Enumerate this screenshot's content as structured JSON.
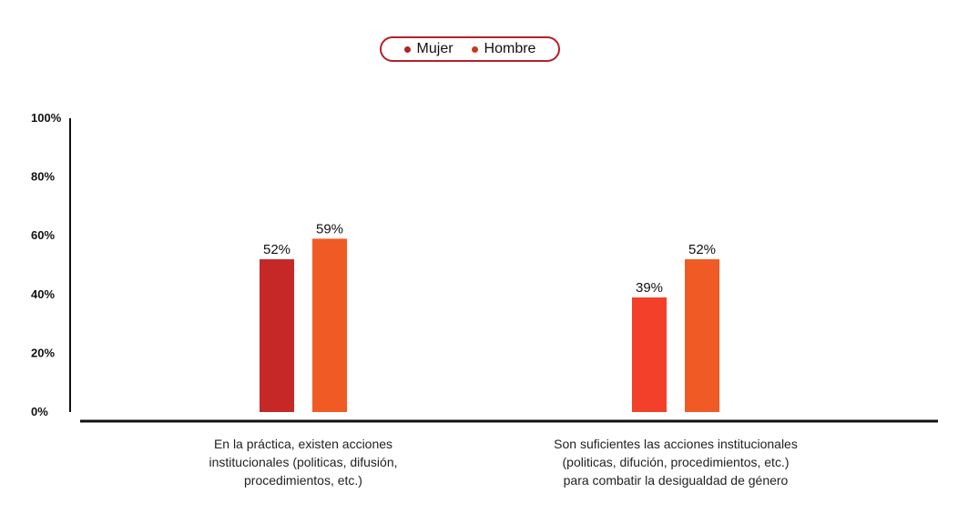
{
  "chart_data": {
    "type": "bar",
    "categories": [
      [
        "En la práctica, existen acciones",
        "institucionales (politicas, difusión,",
        "procedimientos, etc.)"
      ],
      [
        "Son suficientes las acciones institucionales",
        "(politicas, difución, procedimientos, etc.)",
        "para combatir la desigualdad de género"
      ]
    ],
    "series": [
      {
        "name": "Mujer",
        "values": [
          52,
          39
        ],
        "value_labels": [
          "52%",
          "39%"
        ],
        "colors": [
          "#c62828",
          "#f2402a"
        ]
      },
      {
        "name": "Hombre",
        "values": [
          59,
          52
        ],
        "value_labels": [
          "59%",
          "52%"
        ],
        "colors": [
          "#f05a24",
          "#f05a24"
        ]
      }
    ],
    "legend": {
      "placement": "top-center",
      "colors": [
        "#b3202a",
        "#c8381f"
      ]
    },
    "yticks": [
      {
        "value": 0,
        "label": "0%"
      },
      {
        "value": 20,
        "label": "20%"
      },
      {
        "value": 40,
        "label": "40%"
      },
      {
        "value": 60,
        "label": "60%"
      },
      {
        "value": 80,
        "label": "80%"
      },
      {
        "value": 100,
        "label": "100%"
      }
    ],
    "ylim": [
      0,
      100
    ],
    "grid": false
  }
}
